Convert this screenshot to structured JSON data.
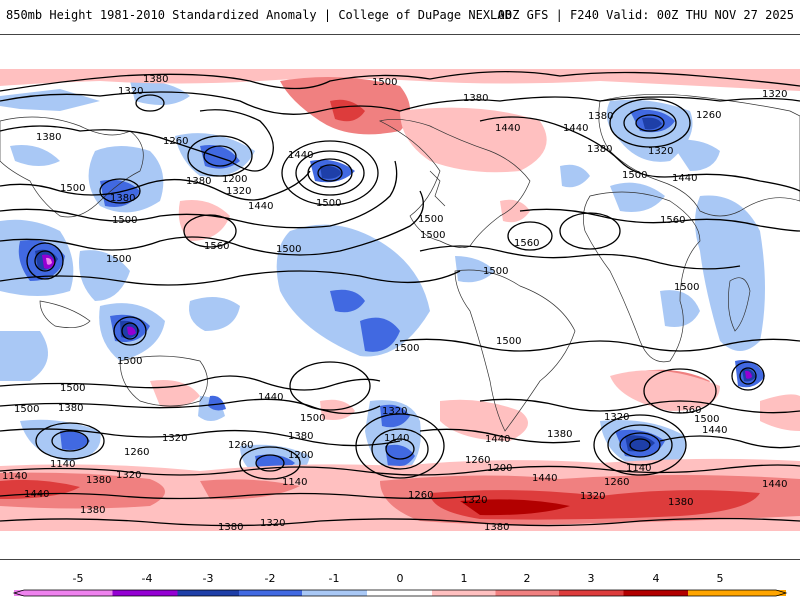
{
  "header": {
    "title_left": "850mb Height 1981-2010 Standardized Anomaly | College of DuPage NEXLAB",
    "title_right": "00Z GFS | F240 Valid: 00Z THU NOV 27 2025"
  },
  "contour_labels": [
    {
      "id": "c1",
      "text": "1380"
    },
    {
      "id": "c2",
      "text": "1320"
    },
    {
      "id": "c3",
      "text": "1380"
    },
    {
      "id": "c4",
      "text": "1260"
    },
    {
      "id": "c5",
      "text": "1200"
    },
    {
      "id": "c6",
      "text": "1380"
    },
    {
      "id": "c7",
      "text": "1320"
    },
    {
      "id": "c8",
      "text": "1440"
    },
    {
      "id": "c9",
      "text": "1500"
    },
    {
      "id": "c10",
      "text": "1440"
    },
    {
      "id": "c11",
      "text": "1500"
    },
    {
      "id": "c12",
      "text": "1500"
    },
    {
      "id": "c13",
      "text": "1500"
    },
    {
      "id": "c14",
      "text": "1500"
    },
    {
      "id": "c15",
      "text": "1380"
    },
    {
      "id": "c16",
      "text": "1440"
    },
    {
      "id": "c17",
      "text": "1380"
    },
    {
      "id": "c18",
      "text": "1440"
    },
    {
      "id": "c19",
      "text": "1260"
    },
    {
      "id": "c20",
      "text": "1380"
    },
    {
      "id": "c21",
      "text": "1320"
    },
    {
      "id": "c22",
      "text": "1320"
    },
    {
      "id": "c23",
      "text": "1500"
    },
    {
      "id": "c24",
      "text": "1440"
    },
    {
      "id": "c25",
      "text": "1500"
    },
    {
      "id": "c26",
      "text": "1560"
    },
    {
      "id": "c27",
      "text": "1500"
    },
    {
      "id": "c28",
      "text": "1560"
    },
    {
      "id": "c29",
      "text": "1500"
    },
    {
      "id": "c30",
      "text": "1500"
    },
    {
      "id": "c31",
      "text": "1500"
    },
    {
      "id": "c32",
      "text": "1500"
    },
    {
      "id": "c33",
      "text": "1500"
    },
    {
      "id": "c34",
      "text": "1500"
    },
    {
      "id": "c35",
      "text": "1500"
    },
    {
      "id": "c36",
      "text": "1500"
    },
    {
      "id": "c37",
      "text": "1560"
    },
    {
      "id": "c38",
      "text": "1500"
    },
    {
      "id": "c39",
      "text": "1440"
    },
    {
      "id": "c40",
      "text": "1440"
    },
    {
      "id": "c41",
      "text": "1380"
    },
    {
      "id": "c42",
      "text": "1320"
    },
    {
      "id": "c43",
      "text": "1440"
    },
    {
      "id": "c44",
      "text": "1500"
    },
    {
      "id": "c45",
      "text": "1320"
    },
    {
      "id": "c46",
      "text": "1380"
    },
    {
      "id": "c47",
      "text": "1140"
    },
    {
      "id": "c48",
      "text": "1260"
    },
    {
      "id": "c49",
      "text": "1140"
    },
    {
      "id": "c50",
      "text": "1260"
    },
    {
      "id": "c51",
      "text": "1200"
    },
    {
      "id": "c52",
      "text": "1140"
    },
    {
      "id": "c53",
      "text": "1380"
    },
    {
      "id": "c54",
      "text": "1320"
    },
    {
      "id": "c55",
      "text": "1140"
    },
    {
      "id": "c56",
      "text": "1260"
    },
    {
      "id": "c57",
      "text": "1200"
    },
    {
      "id": "c58",
      "text": "1440"
    },
    {
      "id": "c59",
      "text": "1380"
    },
    {
      "id": "c60",
      "text": "1320"
    },
    {
      "id": "c61",
      "text": "1380"
    },
    {
      "id": "c62",
      "text": "1140"
    },
    {
      "id": "c63",
      "text": "1260"
    },
    {
      "id": "c64",
      "text": "1320"
    },
    {
      "id": "c65",
      "text": "1380"
    },
    {
      "id": "c66",
      "text": "1440"
    },
    {
      "id": "c67",
      "text": "1320"
    },
    {
      "id": "c68",
      "text": "1380"
    },
    {
      "id": "c69",
      "text": "1440"
    },
    {
      "id": "c70",
      "text": "1380"
    },
    {
      "id": "c71",
      "text": "1320"
    },
    {
      "id": "c72",
      "text": "1260"
    },
    {
      "id": "c73",
      "text": "1320"
    },
    {
      "id": "c74",
      "text": "1380"
    },
    {
      "id": "c75",
      "text": "1380"
    },
    {
      "id": "c76",
      "text": "1320"
    },
    {
      "id": "c77",
      "text": "1500"
    },
    {
      "id": "c78",
      "text": "1560"
    },
    {
      "id": "c79",
      "text": "1440"
    },
    {
      "id": "c80",
      "text": "1380"
    },
    {
      "id": "c81",
      "text": "1440"
    }
  ],
  "colorbar": {
    "ticks": [
      "-5",
      "-4",
      "-3",
      "-2",
      "-1",
      "0",
      "1",
      "2",
      "3",
      "4",
      "5"
    ],
    "colors": [
      "#ee82ee",
      "#9400d3",
      "#1e3fa8",
      "#4169e1",
      "#a9c8f5",
      "#ffffff",
      "#ffc0c0",
      "#f08080",
      "#dd3c3c",
      "#b20000",
      "#ffa500"
    ]
  }
}
